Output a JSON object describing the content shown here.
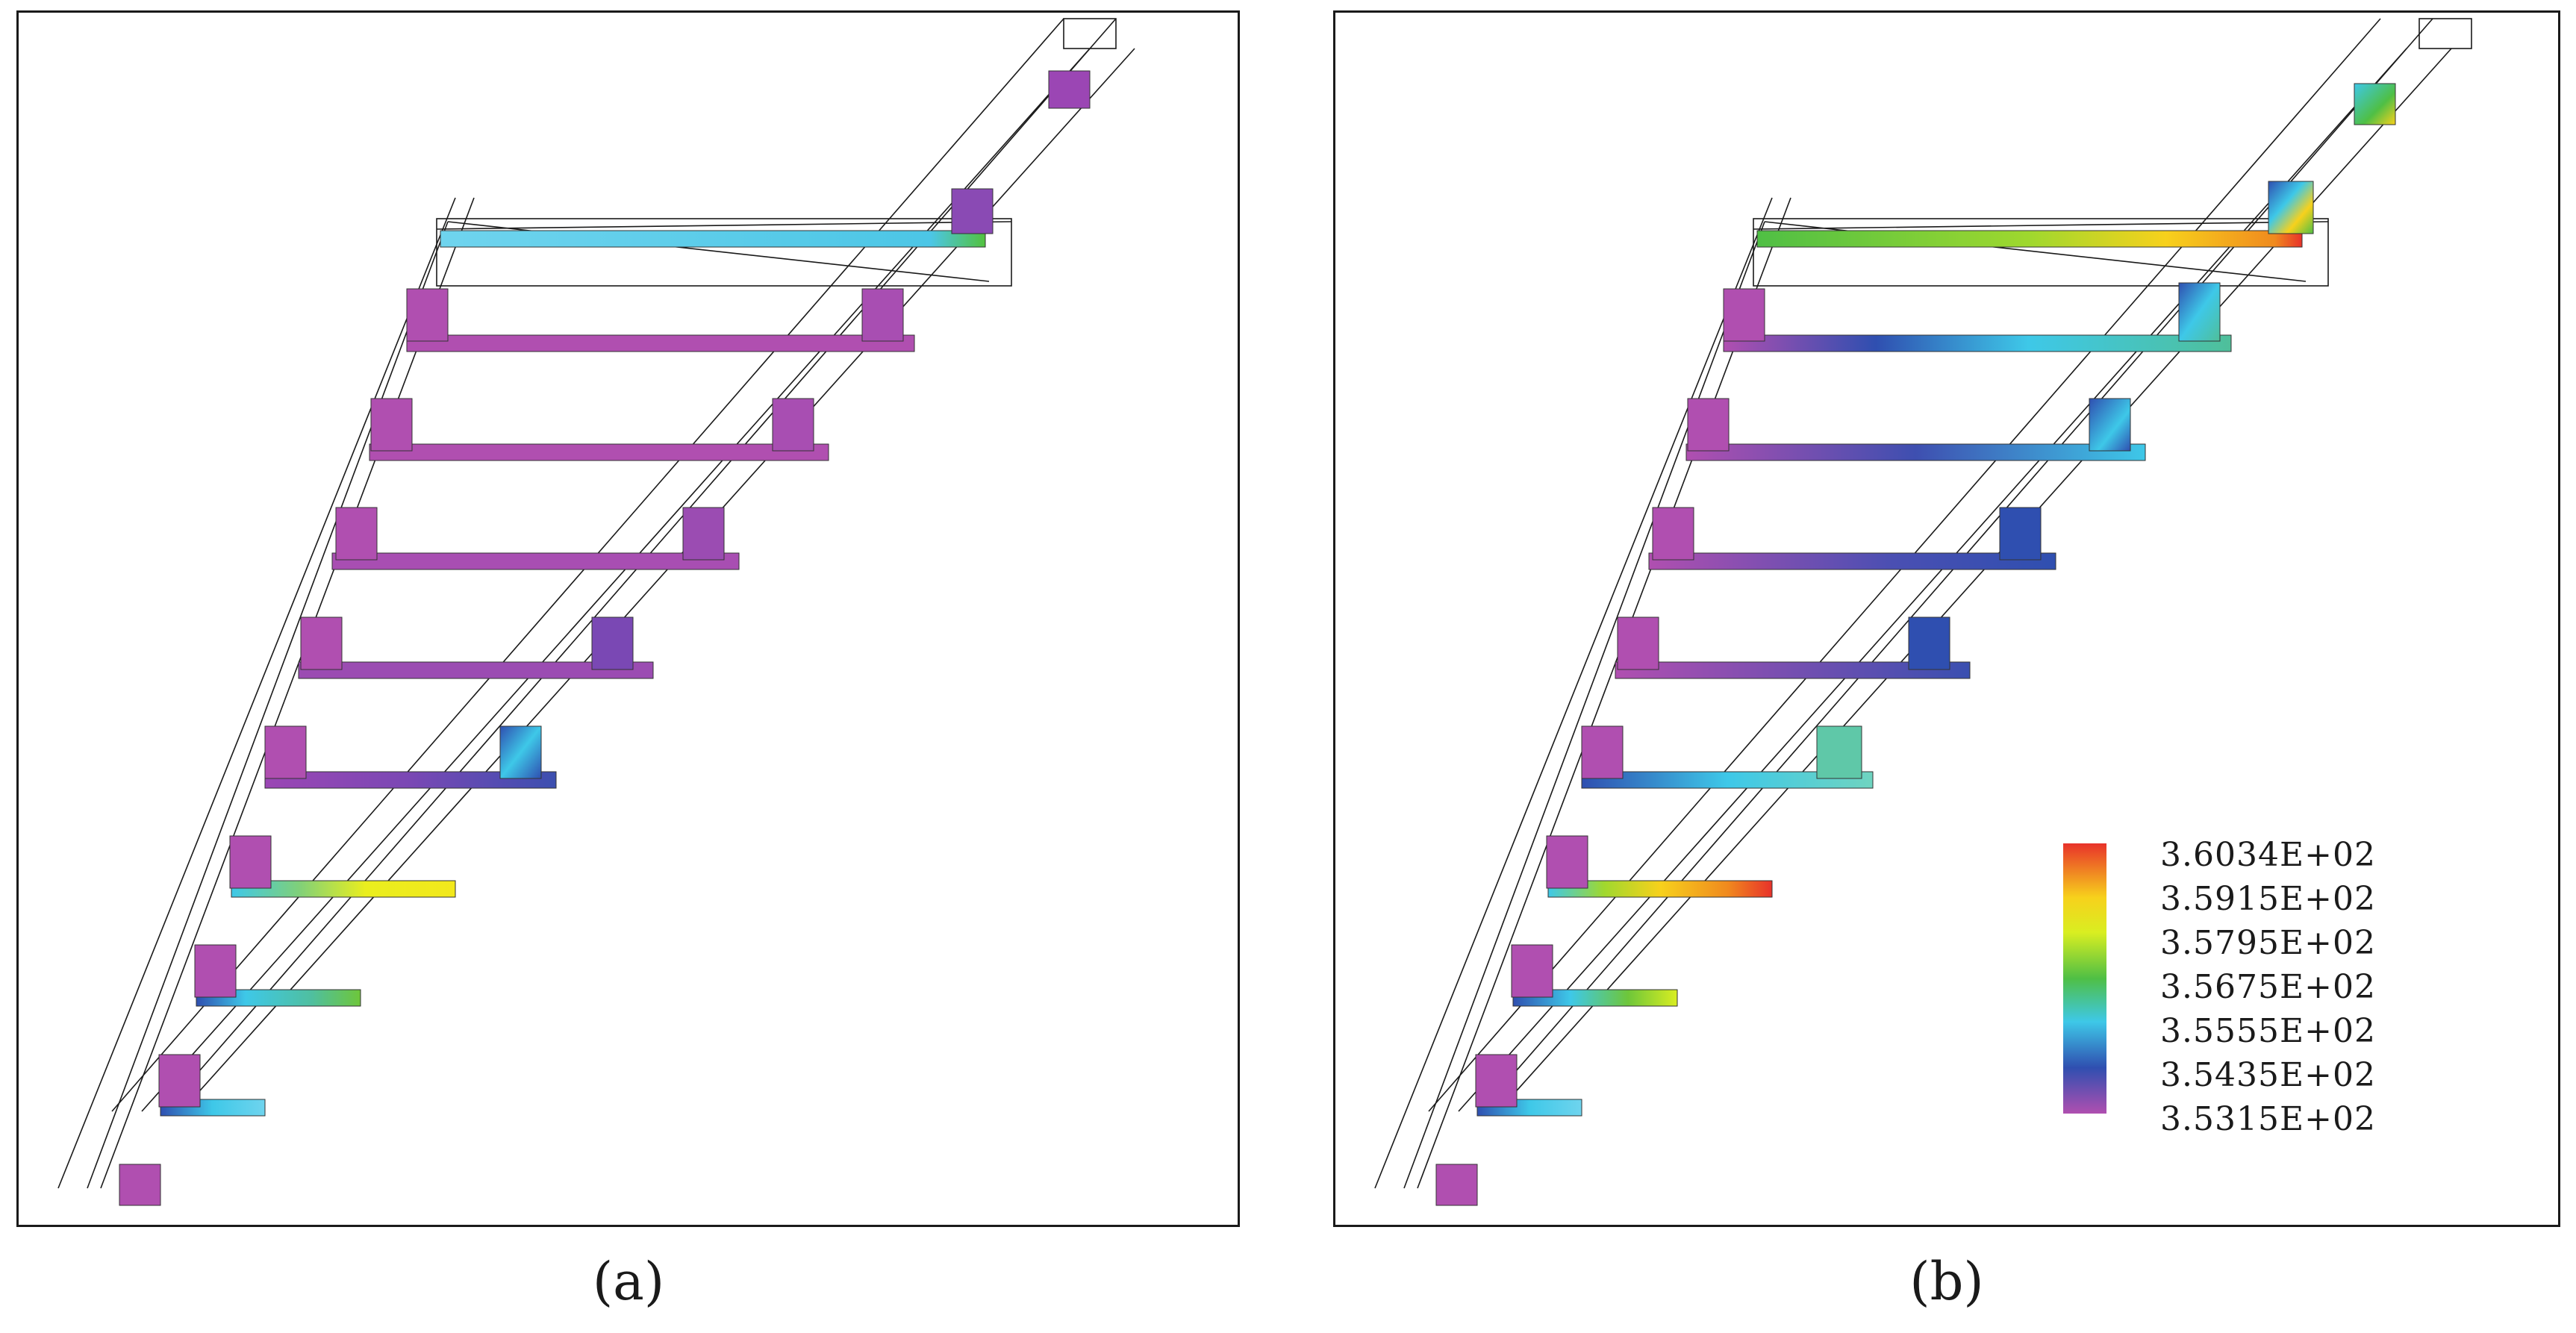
{
  "figure": {
    "panels": [
      {
        "id": "a",
        "caption": "(a)"
      },
      {
        "id": "b",
        "caption": "(b)"
      }
    ],
    "legend": {
      "labels": [
        "3.6034E+02",
        "3.5915E+02",
        "3.5795E+02",
        "3.5675E+02",
        "3.5555E+02",
        "3.5435E+02",
        "3.5315E+02"
      ],
      "colors": [
        "#e8322a",
        "#f7d11c",
        "#d9ee21",
        "#4fbf45",
        "#3ec8e8",
        "#2f4fb0",
        "#b04fb0"
      ]
    }
  }
}
